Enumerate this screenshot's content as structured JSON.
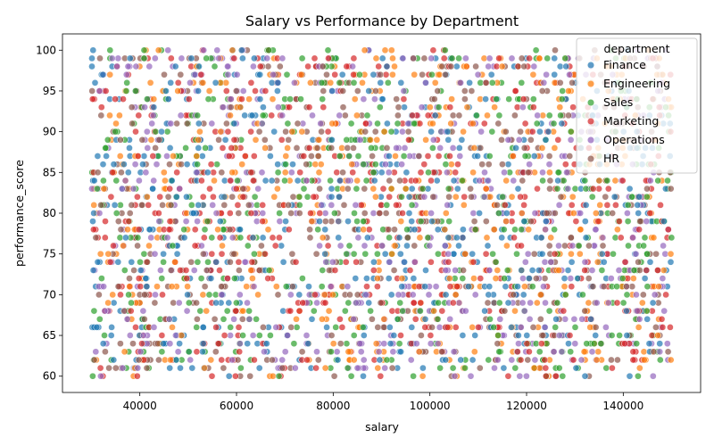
{
  "chart_data": {
    "type": "scatter",
    "title": "Salary vs Performance by Department",
    "xlabel": "salary",
    "ylabel": "performance_score",
    "xlim": [
      24000,
      156000
    ],
    "ylim": [
      58,
      102
    ],
    "x_ticks": [
      40000,
      60000,
      80000,
      100000,
      120000,
      140000
    ],
    "x_tick_labels": [
      "40000",
      "60000",
      "80000",
      "100000",
      "120000",
      "140000"
    ],
    "y_ticks": [
      60,
      65,
      70,
      75,
      80,
      85,
      90,
      95,
      100
    ],
    "y_tick_labels": [
      "60",
      "65",
      "70",
      "75",
      "80",
      "85",
      "90",
      "95",
      "100"
    ],
    "grid": false,
    "legend": {
      "title": "department",
      "placement": "top-right"
    },
    "x_range": [
      30000,
      150000
    ],
    "y_range": [
      60,
      100
    ],
    "series": [
      {
        "name": "Finance",
        "color": "#1f77b4"
      },
      {
        "name": "Engineering",
        "color": "#ff7f0e"
      },
      {
        "name": "Sales",
        "color": "#2ca02c"
      },
      {
        "name": "Marketing",
        "color": "#d62728"
      },
      {
        "name": "Operations",
        "color": "#9467bd"
      },
      {
        "name": "HR",
        "color": "#8c564b"
      }
    ]
  }
}
